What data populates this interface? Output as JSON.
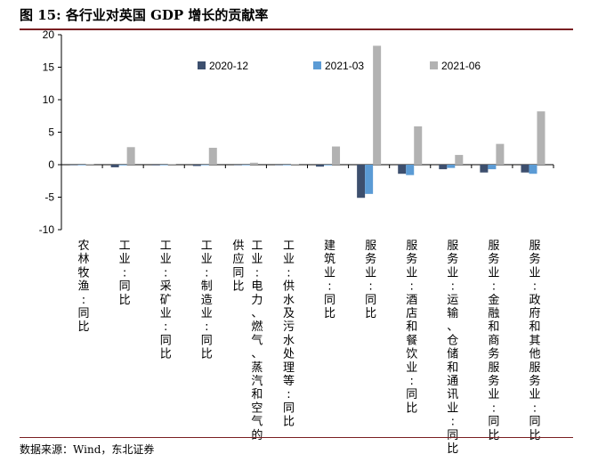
{
  "title": "图 15:  各行业对英国 GDP 增长的贡献率",
  "source": "数据来源：Wind，东北证券",
  "chart_data": {
    "type": "bar",
    "ylim": [
      -10,
      20
    ],
    "yticks": [
      20,
      15,
      10,
      5,
      0,
      -5,
      -10
    ],
    "grid": false,
    "legend_position": "top",
    "categories": [
      "农林牧渔:同比",
      "工业:同比",
      "工业:采矿业:同比",
      "工业:制造业:同比",
      "工业:电力、燃气、蒸汽和空气的供应同比",
      "工业:供水及污水处理等:同比",
      "建筑业:同比",
      "服务业:同比",
      "服务业:酒店和餐饮业:同比",
      "服务业:运输、仓储和通讯业:同比",
      "服务业:金融和商务服务业:同比",
      "服务业:政府和其他服务业:同比"
    ],
    "category_lines": [
      [
        [
          "农林牧",
          "渔:同",
          "比"
        ]
      ],
      [
        [
          "工",
          "业:同",
          "比"
        ]
      ],
      [
        [
          "工",
          "业:采",
          "矿业:同",
          "比"
        ]
      ],
      [
        [
          "工",
          "业:制",
          "造业:同",
          "比"
        ]
      ],
      [
        [
          "工",
          "业:电",
          "力、燃",
          "气、蒸",
          "汽和空",
          "气的"
        ],
        [
          "供",
          "应同",
          "比"
        ]
      ],
      [
        [
          "工",
          "业:供",
          "水及",
          "污水",
          "处理",
          "等:同",
          "比"
        ]
      ],
      [
        [
          "建",
          "筑业:同",
          "比"
        ]
      ],
      [
        [
          "服",
          "务业:同",
          "比"
        ]
      ],
      [
        [
          "服",
          "务业:酒",
          "店和",
          "餐饮",
          "业:同",
          "比"
        ]
      ],
      [
        [
          "服",
          "务业:运",
          "输、",
          "仓储",
          "和通",
          "讯业:同",
          "比"
        ]
      ],
      [
        [
          "服",
          "务业:金",
          "融和",
          "商务",
          "服务",
          "业:同",
          "比"
        ]
      ],
      [
        [
          "服",
          "务业:政",
          "府和",
          "其他",
          "服务",
          "业:同",
          "比"
        ]
      ]
    ],
    "series": [
      {
        "name": "2020-12",
        "color": "#3d4f6e",
        "values": [
          0,
          -0.4,
          -0.1,
          -0.2,
          0,
          0,
          -0.3,
          -5.1,
          -1.4,
          -0.7,
          -1.2,
          -1.2
        ]
      },
      {
        "name": "2021-03",
        "color": "#5b9bd5",
        "values": [
          0,
          -0.1,
          0,
          0,
          0,
          0,
          -0.1,
          -4.5,
          -1.6,
          -0.5,
          -0.7,
          -1.4
        ]
      },
      {
        "name": "2021-06",
        "color": "#b2b2b2",
        "values": [
          0.1,
          2.7,
          0.1,
          2.6,
          0.3,
          0.1,
          2.8,
          18.3,
          5.9,
          1.5,
          3.2,
          8.2
        ]
      }
    ]
  }
}
